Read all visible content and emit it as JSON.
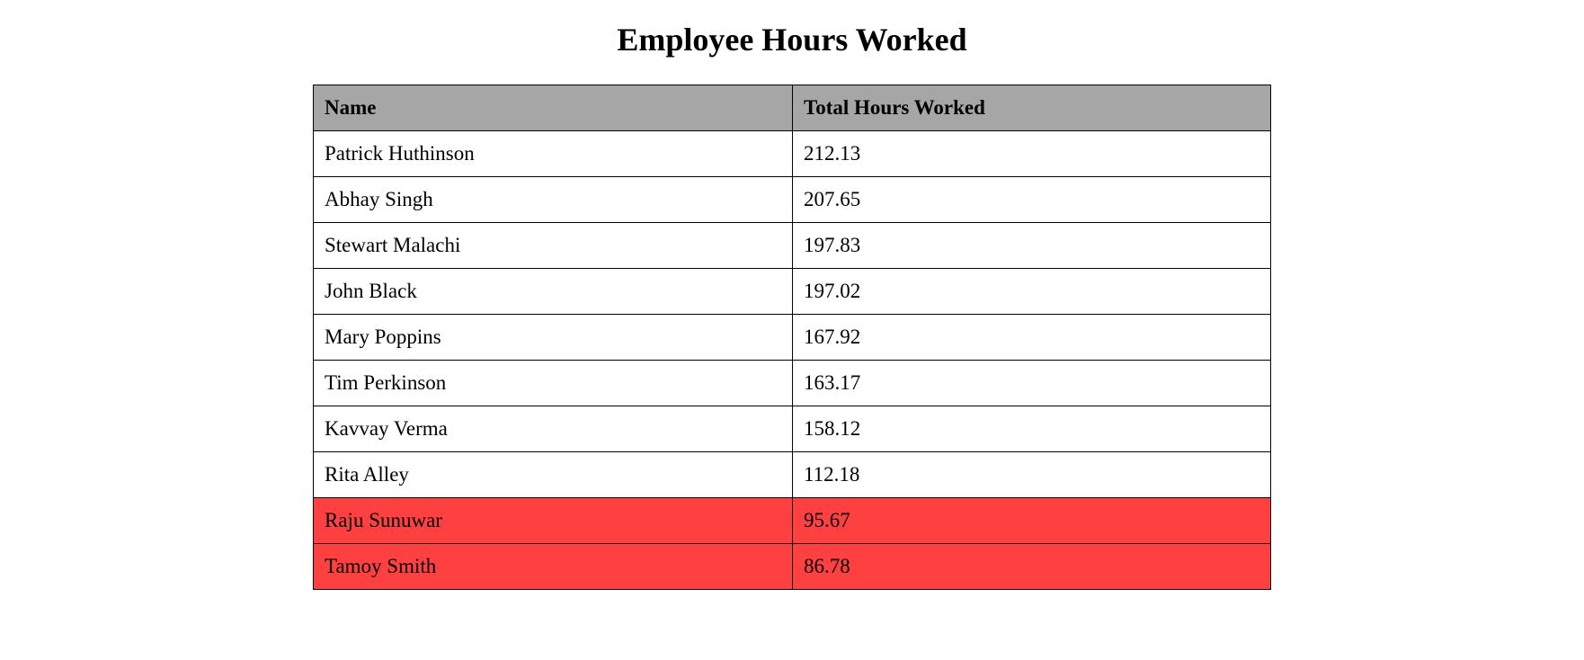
{
  "title": "Employee Hours Worked",
  "colors": {
    "header_bg": "#a6a6a6",
    "highlight_bg": "#ff4040"
  },
  "table": {
    "headers": [
      "Name",
      "Total Hours Worked"
    ],
    "rows": [
      {
        "name": "Patrick Huthinson",
        "hours": "212.13",
        "highlight": false
      },
      {
        "name": "Abhay Singh",
        "hours": "207.65",
        "highlight": false
      },
      {
        "name": "Stewart Malachi",
        "hours": "197.83",
        "highlight": false
      },
      {
        "name": "John Black",
        "hours": "197.02",
        "highlight": false
      },
      {
        "name": "Mary Poppins",
        "hours": "167.92",
        "highlight": false
      },
      {
        "name": "Tim Perkinson",
        "hours": "163.17",
        "highlight": false
      },
      {
        "name": "Kavvay Verma",
        "hours": "158.12",
        "highlight": false
      },
      {
        "name": "Rita Alley",
        "hours": "112.18",
        "highlight": false
      },
      {
        "name": "Raju Sunuwar",
        "hours": "95.67",
        "highlight": true
      },
      {
        "name": "Tamoy Smith",
        "hours": "86.78",
        "highlight": true
      }
    ]
  }
}
